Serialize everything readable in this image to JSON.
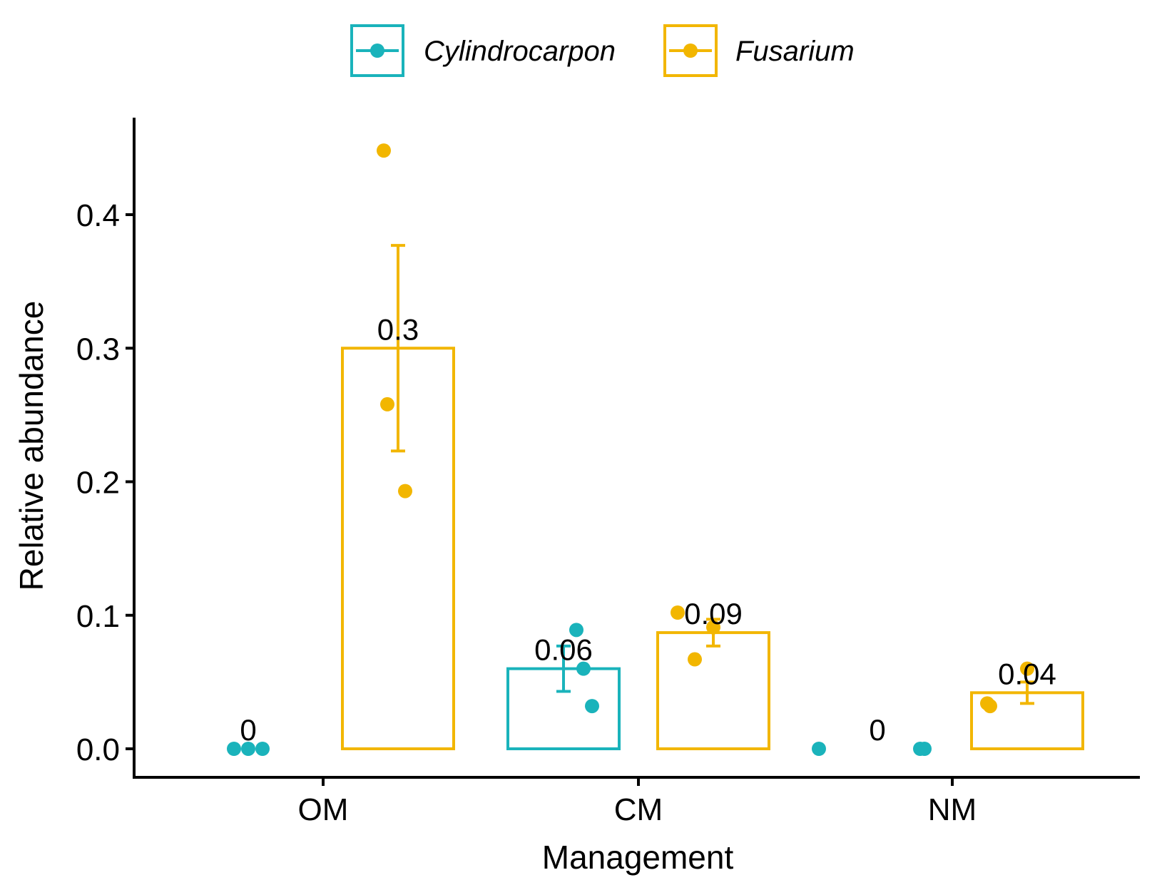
{
  "chart_data": {
    "type": "bar",
    "xlabel": "Management",
    "ylabel": "Relative abundance",
    "ylim": [
      -0.022,
      0.47
    ],
    "yticks": [
      0.0,
      0.1,
      0.2,
      0.3,
      0.4
    ],
    "ytick_labels": [
      "0.0",
      "0.1",
      "0.2",
      "0.3",
      "0.4"
    ],
    "categories": [
      "OM",
      "CM",
      "NM"
    ],
    "legend_position": "top",
    "grid": false,
    "series": [
      {
        "name": "Cylindrocarpon",
        "color": "#1AB3BB",
        "values": [
          0.0,
          0.06,
          0.0
        ],
        "labels": [
          "0",
          "0.06",
          "0"
        ],
        "err_low": [
          0.0,
          0.043,
          0.0
        ],
        "err_high": [
          0.0,
          0.077,
          0.0
        ],
        "points": [
          [
            0.0,
            0.0,
            0.0
          ],
          [
            0.089,
            0.06,
            0.032
          ],
          [
            0.0,
            0.0,
            0.0
          ]
        ]
      },
      {
        "name": "Fusarium",
        "color": "#F2B600",
        "values": [
          0.3,
          0.087,
          0.042
        ],
        "labels": [
          "0.3",
          "0.09",
          "0.04"
        ],
        "err_low": [
          0.223,
          0.077,
          0.034
        ],
        "err_high": [
          0.377,
          0.097,
          0.05
        ],
        "points": [
          [
            0.448,
            0.258,
            0.193
          ],
          [
            0.102,
            0.067,
            0.091
          ],
          [
            0.034,
            0.032,
            0.06
          ]
        ]
      }
    ]
  }
}
